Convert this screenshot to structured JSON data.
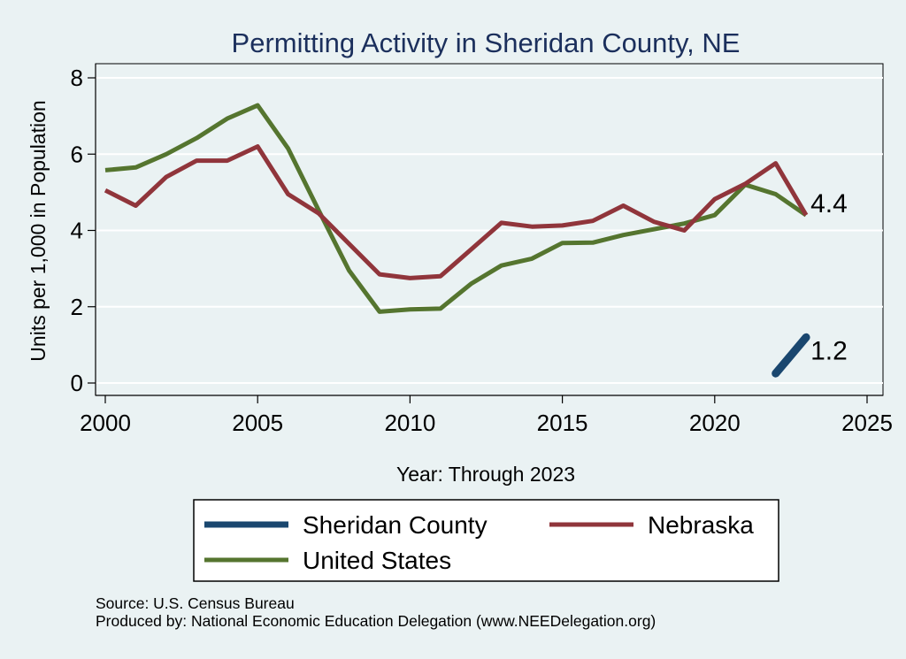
{
  "chart_data": {
    "type": "line",
    "title": "Permitting Activity in Sheridan County, NE",
    "xlabel": "Year: Through 2023",
    "ylabel": "Units per 1,000 in Population",
    "xlim": [
      2000,
      2025
    ],
    "ylim": [
      0,
      8
    ],
    "x_ticks": [
      "2000",
      "2005",
      "2010",
      "2015",
      "2020",
      "2025"
    ],
    "y_ticks": [
      "0",
      "2",
      "4",
      "6",
      "8"
    ],
    "grid": true,
    "legend_position": "bottom",
    "series": [
      {
        "name": "Sheridan County",
        "color": "#1a476f",
        "x": [
          2022,
          2023
        ],
        "values": [
          0.25,
          1.2
        ],
        "end_label": "1.2"
      },
      {
        "name": "Nebraska",
        "color": "#90353b",
        "x": [
          2000,
          2001,
          2002,
          2003,
          2004,
          2005,
          2006,
          2007,
          2008,
          2009,
          2010,
          2011,
          2012,
          2013,
          2014,
          2015,
          2016,
          2017,
          2018,
          2019,
          2020,
          2021,
          2022,
          2023
        ],
        "values": [
          5.05,
          4.65,
          5.4,
          5.83,
          5.83,
          6.2,
          4.95,
          4.45,
          3.65,
          2.85,
          2.75,
          2.8,
          3.5,
          4.2,
          4.1,
          4.13,
          4.25,
          4.65,
          4.23,
          4.0,
          4.82,
          5.22,
          5.76,
          4.4
        ],
        "end_label": "4.4"
      },
      {
        "name": "United States",
        "color": "#55752f",
        "x": [
          2000,
          2001,
          2002,
          2003,
          2004,
          2005,
          2006,
          2007,
          2008,
          2009,
          2010,
          2011,
          2012,
          2013,
          2014,
          2015,
          2016,
          2017,
          2018,
          2019,
          2020,
          2021,
          2022,
          2023
        ],
        "values": [
          5.58,
          5.65,
          6.0,
          6.42,
          6.93,
          7.28,
          6.15,
          4.53,
          2.95,
          1.87,
          1.93,
          1.95,
          2.6,
          3.08,
          3.26,
          3.67,
          3.68,
          3.88,
          4.03,
          4.18,
          4.4,
          5.2,
          4.95,
          4.4
        ]
      }
    ],
    "notes": [
      "Source: U.S. Census Bureau",
      "Produced by: National Economic Education Delegation (www.NEEDelegation.org)"
    ]
  }
}
